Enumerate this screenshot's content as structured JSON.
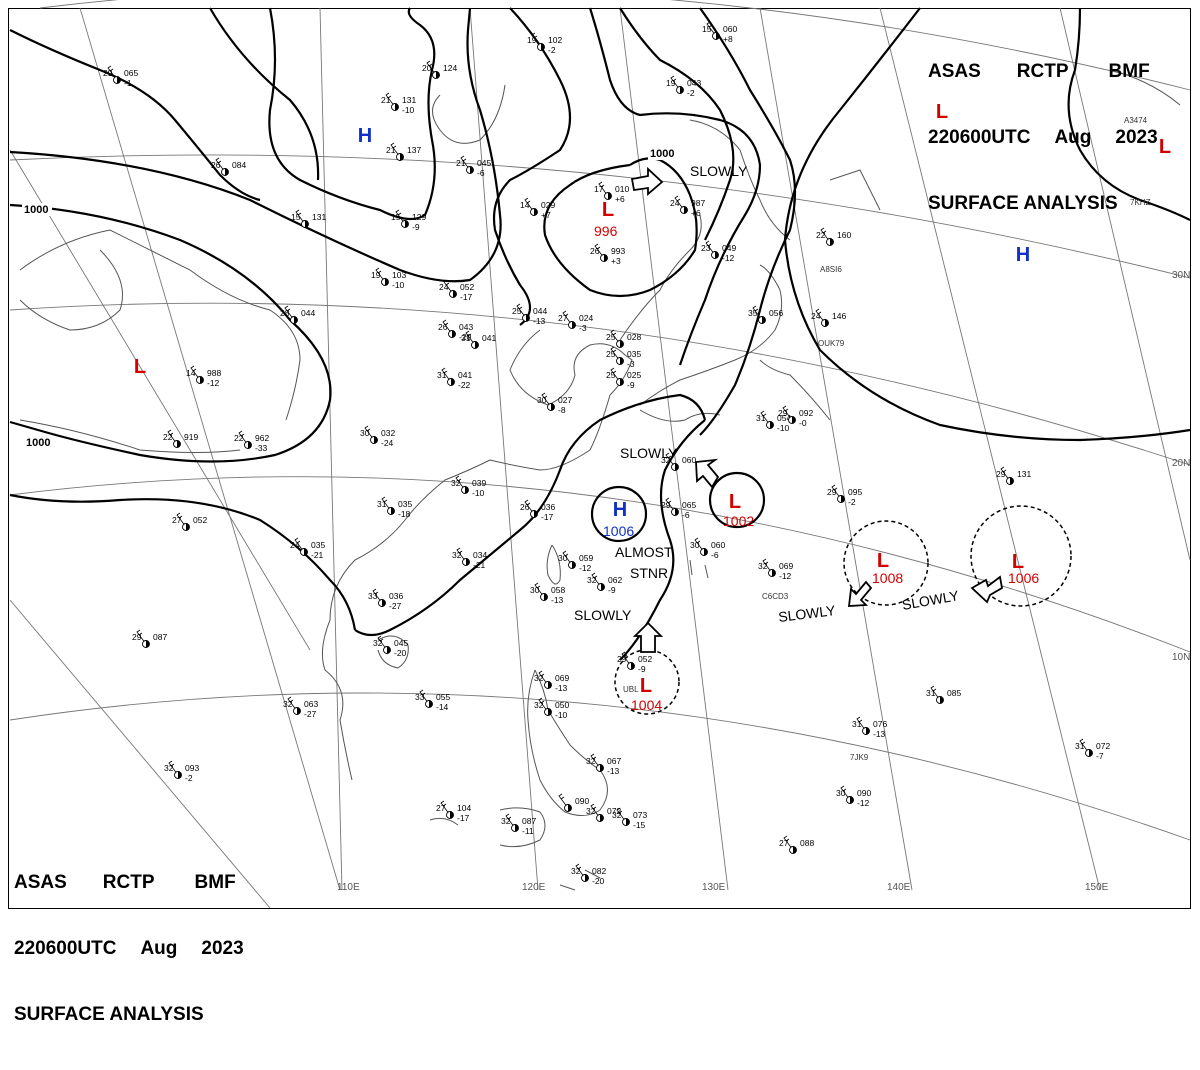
{
  "header": {
    "agency": "ASAS",
    "station": "RCTP",
    "office": "BMF",
    "time": "220600UTC",
    "month": "Aug",
    "year": "2023",
    "title": "SURFACE ANALYSIS"
  },
  "lat_labels": [
    "30N",
    "20N",
    "10N"
  ],
  "lon_labels": [
    "110E",
    "120E",
    "130E",
    "140E",
    "150E"
  ],
  "isobar_labels": [
    "1000",
    "1000",
    "1000"
  ],
  "centers": [
    {
      "type": "L",
      "pressure": "996",
      "color": "#d40000"
    },
    {
      "type": "L",
      "pressure": "1002",
      "color": "#d40000"
    },
    {
      "type": "L",
      "pressure": "1008",
      "color": "#d40000"
    },
    {
      "type": "L",
      "pressure": "1006",
      "color": "#d40000"
    },
    {
      "type": "L",
      "pressure": "1004",
      "color": "#d40000"
    },
    {
      "type": "H",
      "pressure": "1006",
      "color": "#1030c8"
    },
    {
      "type": "L",
      "pressure": "",
      "color": "#d40000"
    },
    {
      "type": "L",
      "pressure": "",
      "color": "#d40000"
    },
    {
      "type": "L",
      "pressure": "",
      "color": "#d40000"
    },
    {
      "type": "H",
      "pressure": "",
      "color": "#1030c8"
    },
    {
      "type": "H",
      "pressure": "",
      "color": "#1030c8"
    }
  ],
  "motions": [
    {
      "text": "SLOWLY"
    },
    {
      "text": "SLOWLY"
    },
    {
      "text": "SLOWLY"
    },
    {
      "text": "SLOWLY"
    },
    {
      "text": "SLOWLY"
    }
  ],
  "stnr_note": [
    "ALMOST",
    "STNR"
  ],
  "ship_ids": [
    "A3474",
    "7KHZ",
    "A8SI6",
    "OUK79",
    "C6CD3",
    "UBL",
    "7JK9"
  ],
  "stations": [
    {
      "t": "29",
      "p": "065",
      "d": "-1"
    },
    {
      "t": "20",
      "p": "124",
      "d": ""
    },
    {
      "t": "19",
      "p": "102",
      "d": "-2"
    },
    {
      "t": "15",
      "p": "060",
      "d": "+8"
    },
    {
      "t": "21",
      "p": "131",
      "d": "-10"
    },
    {
      "t": "21",
      "p": "137",
      "d": ""
    },
    {
      "t": "21",
      "p": "045",
      "d": "-6"
    },
    {
      "t": "19",
      "p": "043",
      "d": "-2"
    },
    {
      "t": "17",
      "p": "010",
      "d": "+6"
    },
    {
      "t": "24",
      "p": "987",
      "d": "+6"
    },
    {
      "t": "26",
      "p": "084",
      "d": ""
    },
    {
      "t": "14",
      "p": "029",
      "d": "+7"
    },
    {
      "t": "15",
      "p": "131",
      "d": ""
    },
    {
      "t": "15",
      "p": "129",
      "d": "-9"
    },
    {
      "t": "26",
      "p": "993",
      "d": "+3"
    },
    {
      "t": "19",
      "p": "103",
      "d": "-10"
    },
    {
      "t": "24",
      "p": "052",
      "d": "-17"
    },
    {
      "t": "25",
      "p": "044",
      "d": "-13"
    },
    {
      "t": "27",
      "p": "024",
      "d": "-3"
    },
    {
      "t": "23",
      "p": "049",
      "d": "-12"
    },
    {
      "t": "28",
      "p": "044",
      "d": ""
    },
    {
      "t": "26",
      "p": "043",
      "d": "-20"
    },
    {
      "t": "31",
      "p": "041",
      "d": ""
    },
    {
      "t": "25",
      "p": "028",
      "d": ""
    },
    {
      "t": "25",
      "p": "035",
      "d": "-3"
    },
    {
      "t": "25",
      "p": "025",
      "d": "-9"
    },
    {
      "t": "35",
      "p": "056",
      "d": ""
    },
    {
      "t": "24",
      "p": "146",
      "d": ""
    },
    {
      "t": "22",
      "p": "160",
      "d": ""
    },
    {
      "t": "14",
      "p": "988",
      "d": "-12"
    },
    {
      "t": "31",
      "p": "041",
      "d": "-22"
    },
    {
      "t": "30",
      "p": "027",
      "d": "-8"
    },
    {
      "t": "22",
      "p": "919",
      "d": ""
    },
    {
      "t": "22",
      "p": "962",
      "d": "-33"
    },
    {
      "t": "30",
      "p": "032",
      "d": "-24"
    },
    {
      "t": "31",
      "p": "054",
      "d": "-10"
    },
    {
      "t": "29",
      "p": "092",
      "d": "-0"
    },
    {
      "t": "32",
      "p": "039",
      "d": "-10"
    },
    {
      "t": "32",
      "p": "060",
      "d": ""
    },
    {
      "t": "31",
      "p": "035",
      "d": "-18"
    },
    {
      "t": "26",
      "p": "036",
      "d": "-17"
    },
    {
      "t": "29",
      "p": "065",
      "d": "-6"
    },
    {
      "t": "29",
      "p": "095",
      "d": "-2"
    },
    {
      "t": "29",
      "p": "131",
      "d": ""
    },
    {
      "t": "27",
      "p": "052",
      "d": ""
    },
    {
      "t": "24",
      "p": "035",
      "d": "-21"
    },
    {
      "t": "32",
      "p": "034",
      "d": "-21"
    },
    {
      "t": "30",
      "p": "059",
      "d": "-12"
    },
    {
      "t": "32",
      "p": "062",
      "d": "-9"
    },
    {
      "t": "30",
      "p": "060",
      "d": "-6"
    },
    {
      "t": "32",
      "p": "069",
      "d": "-12"
    },
    {
      "t": "33",
      "p": "036",
      "d": "-27"
    },
    {
      "t": "30",
      "p": "058",
      "d": "-13"
    },
    {
      "t": "29",
      "p": "087",
      "d": ""
    },
    {
      "t": "32",
      "p": "045",
      "d": "-20"
    },
    {
      "t": "29",
      "p": "052",
      "d": "-9"
    },
    {
      "t": "32",
      "p": "069",
      "d": "-13"
    },
    {
      "t": "32",
      "p": "050",
      "d": "-10"
    },
    {
      "t": "31",
      "p": "085",
      "d": ""
    },
    {
      "t": "32",
      "p": "063",
      "d": "-27"
    },
    {
      "t": "33",
      "p": "055",
      "d": "-14"
    },
    {
      "t": "31",
      "p": "076",
      "d": "-13"
    },
    {
      "t": "31",
      "p": "072",
      "d": "-7"
    },
    {
      "t": "32",
      "p": "093",
      "d": "-2"
    },
    {
      "t": "32",
      "p": "067",
      "d": "-13"
    },
    {
      "t": "30",
      "p": "090",
      "d": "-12"
    },
    {
      "t": "27",
      "p": "104",
      "d": "-17"
    },
    {
      "t": "32",
      "p": "087",
      "d": "-11"
    },
    {
      "t": "32",
      "p": "072",
      "d": ""
    },
    {
      "t": "32",
      "p": "073",
      "d": "-15"
    },
    {
      "t": "",
      "p": "090",
      "d": ""
    },
    {
      "t": "27",
      "p": "088",
      "d": ""
    },
    {
      "t": "32",
      "p": "082",
      "d": "-20"
    }
  ]
}
